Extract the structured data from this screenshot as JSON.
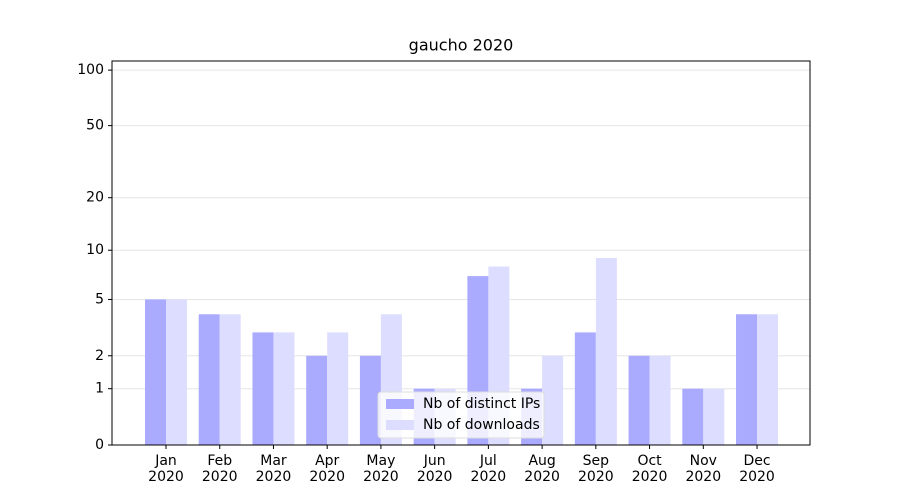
{
  "chart_data": {
    "type": "bar",
    "title": "gaucho 2020",
    "categories": [
      "Jan\n2020",
      "Feb\n2020",
      "Mar\n2020",
      "Apr\n2020",
      "May\n2020",
      "Jun\n2020",
      "Jul\n2020",
      "Aug\n2020",
      "Sep\n2020",
      "Oct\n2020",
      "Nov\n2020",
      "Dec\n2020"
    ],
    "series": [
      {
        "name": "Nb of distinct IPs",
        "color": "#aaaaff",
        "values": [
          5,
          4,
          3,
          2,
          2,
          1,
          7,
          1,
          3,
          2,
          1,
          4
        ]
      },
      {
        "name": "Nb of downloads",
        "color": "#ddddff",
        "values": [
          5,
          4,
          3,
          3,
          4,
          1,
          8,
          2,
          9,
          2,
          1,
          4
        ]
      }
    ],
    "scale": "log1p",
    "ylim": [
      0,
      112
    ],
    "yticks": [
      0,
      1,
      2,
      5,
      10,
      20,
      50,
      100
    ],
    "grid": true,
    "legend": "lower center"
  }
}
